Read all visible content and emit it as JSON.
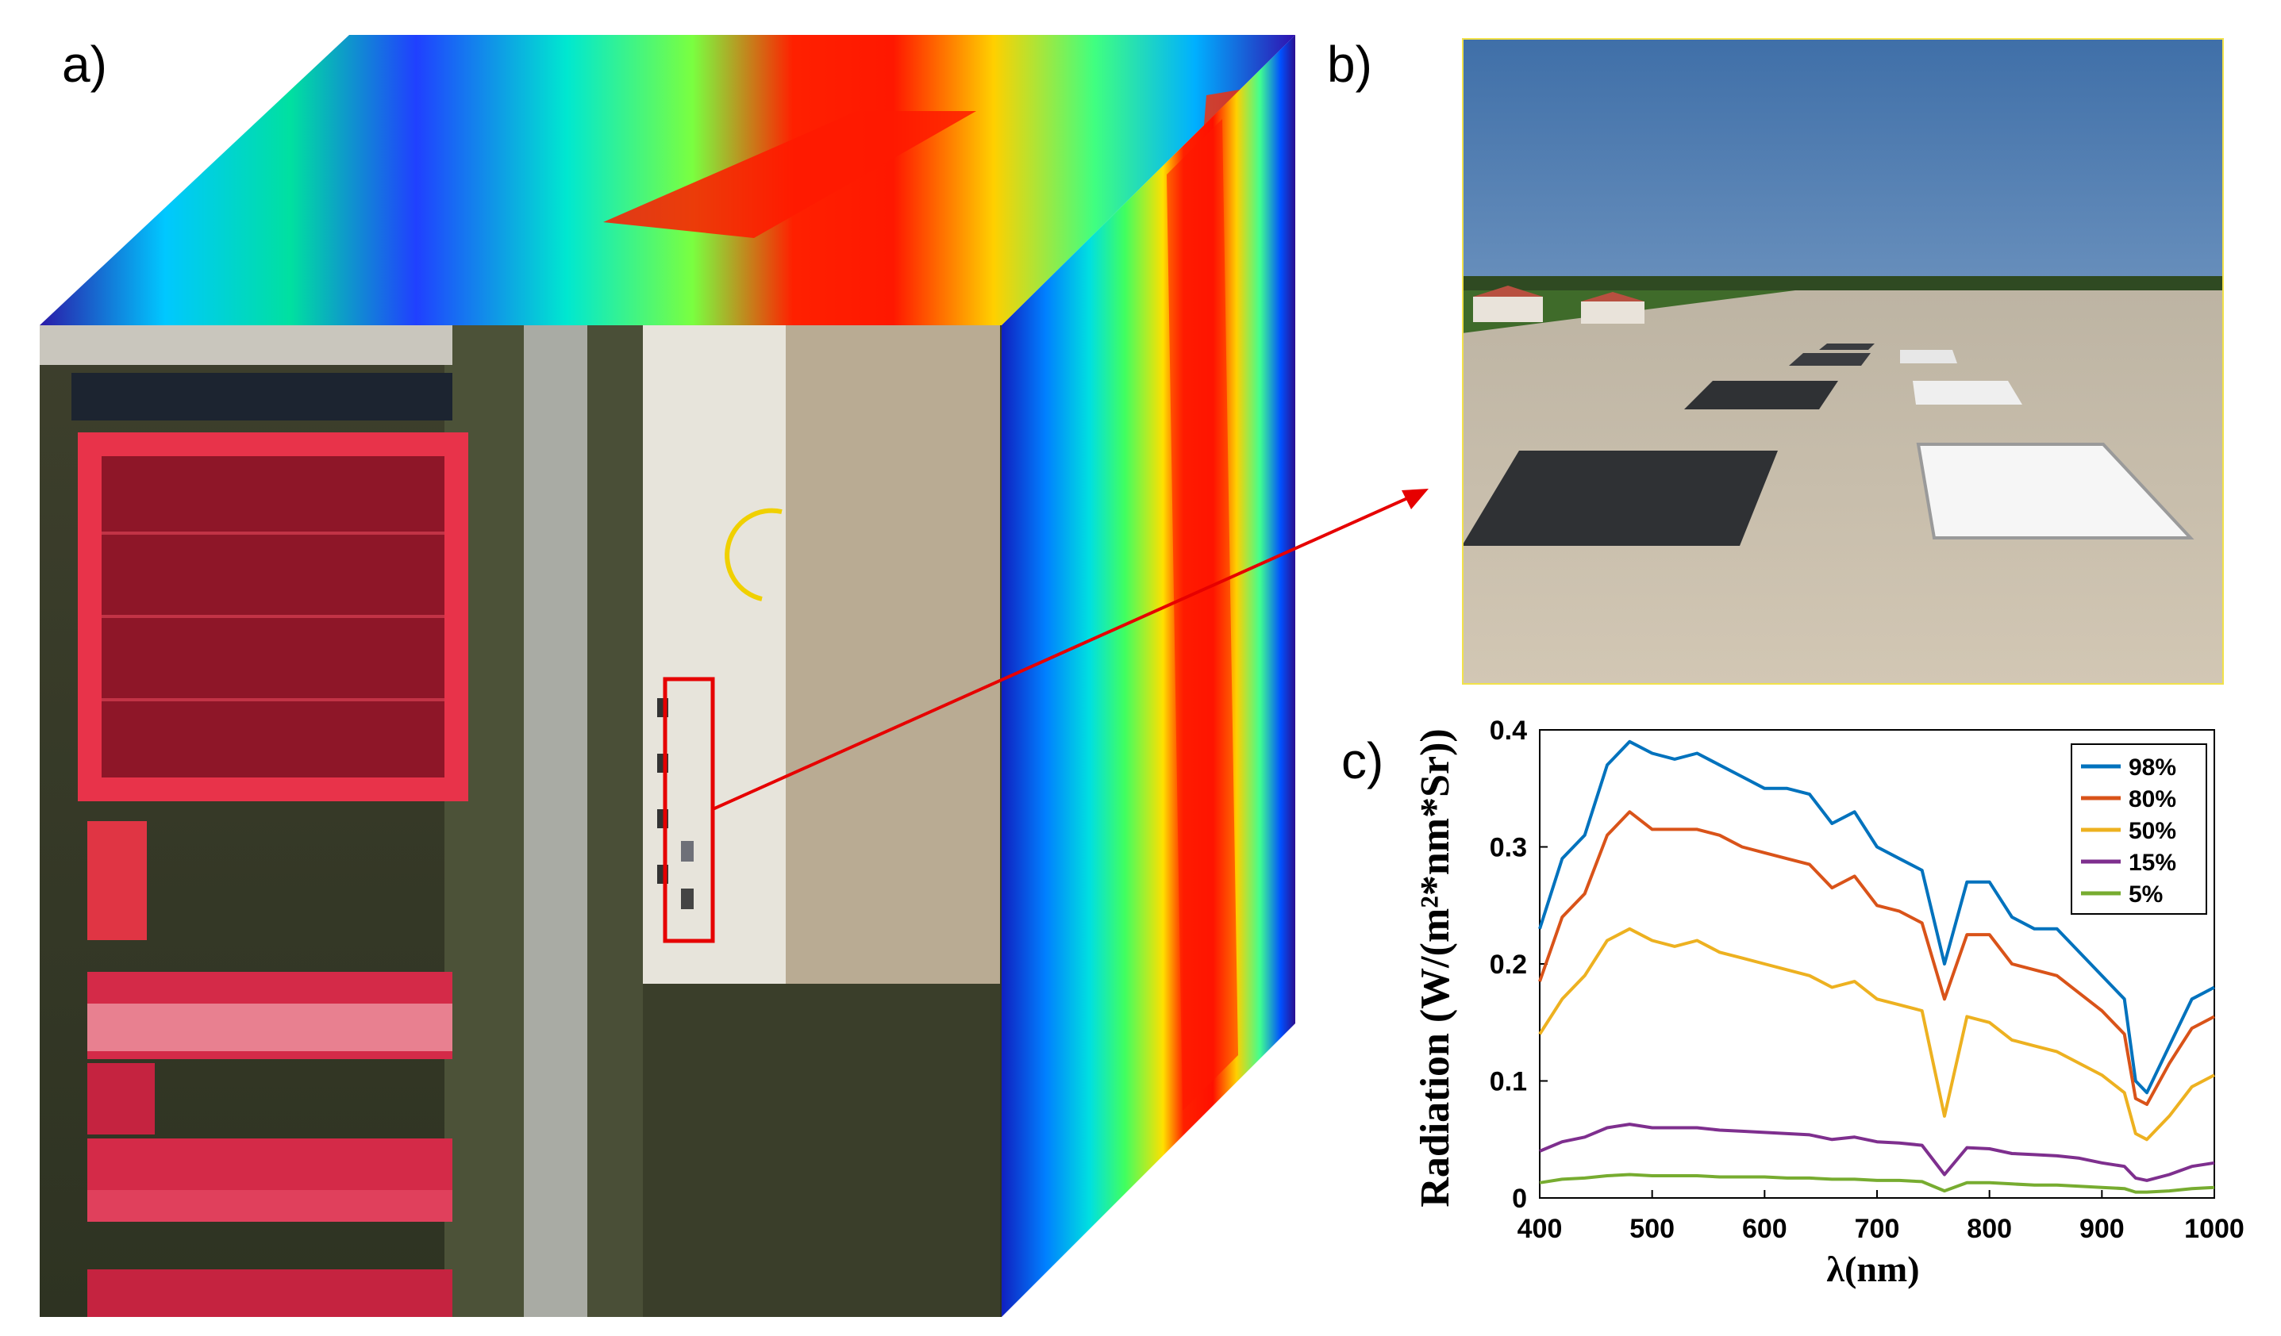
{
  "figure": {
    "panel_a_label": "a)",
    "panel_b_label": "b)",
    "panel_c_label": "c)"
  },
  "colors": {
    "arrow": "#e60000",
    "highlight_box": "#e60000",
    "photo_border": "#f2e24a",
    "roof_red": "#e8334a",
    "series_98": "#0072bd",
    "series_80": "#d95319",
    "series_50": "#edb120",
    "series_15": "#7e2f8e",
    "series_5": "#77ac30"
  },
  "chart_data": {
    "type": "line",
    "title": "",
    "xlabel": "λ(nm)",
    "ylabel": "Radiation (W/(m²*nm*Sr))",
    "xlim": [
      400,
      1000
    ],
    "ylim": [
      0,
      0.4
    ],
    "xticks": [
      "400",
      "500",
      "600",
      "700",
      "800",
      "900",
      "1000"
    ],
    "yticks": [
      "0",
      "0.1",
      "0.2",
      "0.3",
      "0.4"
    ],
    "legend_position": "top-right",
    "grid": false,
    "x": [
      400,
      420,
      440,
      460,
      480,
      500,
      520,
      540,
      560,
      580,
      600,
      620,
      640,
      660,
      680,
      700,
      720,
      740,
      760,
      780,
      800,
      820,
      840,
      860,
      880,
      900,
      920,
      930,
      940,
      960,
      980,
      1000
    ],
    "series": [
      {
        "name": "98%",
        "color": "#0072bd",
        "values": [
          0.23,
          0.29,
          0.31,
          0.37,
          0.39,
          0.38,
          0.375,
          0.38,
          0.37,
          0.36,
          0.35,
          0.35,
          0.345,
          0.32,
          0.33,
          0.3,
          0.29,
          0.28,
          0.2,
          0.27,
          0.27,
          0.24,
          0.23,
          0.23,
          0.21,
          0.19,
          0.17,
          0.1,
          0.09,
          0.13,
          0.17,
          0.18
        ]
      },
      {
        "name": "80%",
        "color": "#d95319",
        "values": [
          0.185,
          0.24,
          0.26,
          0.31,
          0.33,
          0.315,
          0.315,
          0.315,
          0.31,
          0.3,
          0.295,
          0.29,
          0.285,
          0.265,
          0.275,
          0.25,
          0.245,
          0.235,
          0.17,
          0.225,
          0.225,
          0.2,
          0.195,
          0.19,
          0.175,
          0.16,
          0.14,
          0.085,
          0.08,
          0.115,
          0.145,
          0.155
        ]
      },
      {
        "name": "50%",
        "color": "#edb120",
        "values": [
          0.14,
          0.17,
          0.19,
          0.22,
          0.23,
          0.22,
          0.215,
          0.22,
          0.21,
          0.205,
          0.2,
          0.195,
          0.19,
          0.18,
          0.185,
          0.17,
          0.165,
          0.16,
          0.07,
          0.155,
          0.15,
          0.135,
          0.13,
          0.125,
          0.115,
          0.105,
          0.09,
          0.055,
          0.05,
          0.07,
          0.095,
          0.105
        ]
      },
      {
        "name": "15%",
        "color": "#7e2f8e",
        "values": [
          0.04,
          0.048,
          0.052,
          0.06,
          0.063,
          0.06,
          0.06,
          0.06,
          0.058,
          0.057,
          0.056,
          0.055,
          0.054,
          0.05,
          0.052,
          0.048,
          0.047,
          0.045,
          0.02,
          0.043,
          0.042,
          0.038,
          0.037,
          0.036,
          0.034,
          0.03,
          0.027,
          0.017,
          0.015,
          0.02,
          0.027,
          0.03
        ]
      },
      {
        "name": "5%",
        "color": "#77ac30",
        "values": [
          0.013,
          0.016,
          0.017,
          0.019,
          0.02,
          0.019,
          0.019,
          0.019,
          0.018,
          0.018,
          0.018,
          0.017,
          0.017,
          0.016,
          0.016,
          0.015,
          0.015,
          0.014,
          0.006,
          0.013,
          0.013,
          0.012,
          0.011,
          0.011,
          0.01,
          0.009,
          0.008,
          0.005,
          0.005,
          0.006,
          0.008,
          0.009
        ]
      }
    ]
  }
}
